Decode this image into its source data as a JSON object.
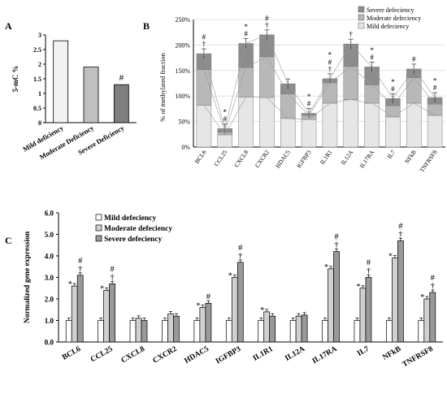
{
  "panels": {
    "a": "A",
    "b": "B",
    "c": "C"
  },
  "chart_data": [
    {
      "type": "bar",
      "ylabel": "5-mC %",
      "ylim": [
        0,
        3
      ],
      "yticks": [
        "0",
        "0.5",
        "1",
        "1.5",
        "2",
        "2.5",
        "3"
      ],
      "categories": [
        "Mild deficiency",
        "Moderate Deficiency",
        "Severe Deficiency"
      ],
      "values": [
        2.8,
        1.9,
        1.3
      ],
      "colors": [
        "#f2f2f2",
        "#c0c0c0",
        "#7f7f7f"
      ],
      "annotations": [
        "",
        "",
        "#"
      ]
    },
    {
      "type": "bar",
      "stacked": true,
      "ylabel": "% of methylated fraction",
      "ylim": [
        0,
        250
      ],
      "yticks": [
        "0%",
        "50%",
        "100%",
        "150%",
        "200%",
        "250%"
      ],
      "legend": {
        "position": "top-right"
      },
      "categories": [
        "BCL6",
        "CCL25",
        "CXCL8",
        "CXCR2",
        "HDAC5",
        "IGFBP3",
        "IL1R1",
        "IL12A",
        "IL17RA",
        "IL7",
        "NFkB",
        "TNFRSF8"
      ],
      "series": [
        {
          "name": "Mild defeciency",
          "color": "#e6e6e6",
          "values": [
            82,
            24,
            98,
            97,
            56,
            54,
            86,
            93,
            86,
            59,
            86,
            62
          ]
        },
        {
          "name": "Moderate defeciency",
          "color": "#b8b8b8",
          "values": [
            70,
            5,
            58,
            80,
            48,
            8,
            40,
            65,
            36,
            22,
            50,
            22
          ]
        },
        {
          "name": "Severe defeciency",
          "color": "#8c8c8c",
          "values": [
            31,
            7,
            47,
            43,
            20,
            4,
            8,
            44,
            35,
            14,
            17,
            13
          ]
        }
      ],
      "annotations": [
        "#\n†",
        "*\n#",
        "*\n#",
        "#\n†",
        "",
        "*\n#",
        "*\n#\n†",
        "†",
        "*\n#",
        "*\n#",
        "#",
        "*\n#"
      ]
    },
    {
      "type": "bar",
      "ylabel": "Normalized gene expression",
      "ylim": [
        0,
        6
      ],
      "yticks": [
        "0.0",
        "1.0",
        "2.0",
        "3.0",
        "4.0",
        "5.0",
        "6.0"
      ],
      "legend": {
        "position": "top-left"
      },
      "categories": [
        "BCL6",
        "CCL25",
        "CXCL8",
        "CXCR2",
        "HDAC5",
        "IGFBP3",
        "IL1R1",
        "IL12A",
        "IL17RA",
        "IL7",
        "NFkB",
        "TNFRSF8"
      ],
      "series": [
        {
          "name": "Mild defeciency",
          "color": "#ffffff",
          "values": [
            1.0,
            1.0,
            1.0,
            1.0,
            1.0,
            1.0,
            1.0,
            1.0,
            1.0,
            1.0,
            1.0,
            1.0
          ]
        },
        {
          "name": "Moderate defeciency",
          "color": "#d0d0d0",
          "values": [
            2.6,
            2.4,
            1.1,
            1.3,
            1.6,
            3.0,
            1.4,
            1.2,
            3.4,
            2.5,
            3.9,
            2.0
          ]
        },
        {
          "name": "Severe defeciency",
          "color": "#999999",
          "values": [
            3.1,
            2.7,
            1.0,
            1.2,
            1.8,
            3.7,
            1.2,
            1.25,
            4.2,
            3.0,
            4.7,
            2.3
          ]
        }
      ],
      "marks_moderate": [
        "*",
        "*",
        "",
        "",
        "*",
        "*",
        "*",
        "",
        "*",
        "*",
        "*",
        "*"
      ],
      "marks_severe": [
        "#\n†",
        "#\n†",
        "",
        "",
        "#",
        "#\n†",
        "",
        "",
        "#\n†",
        "#\n†",
        "#\n†",
        "#\n†"
      ]
    }
  ]
}
